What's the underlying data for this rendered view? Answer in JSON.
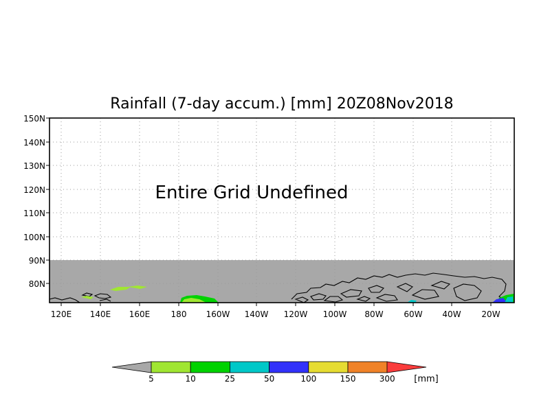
{
  "title": "Rainfall (7-day accum.) [mm] 20Z08Nov2018",
  "message": "Entire Grid Undefined",
  "lat_labels": [
    "150N",
    "140N",
    "130N",
    "120N",
    "110N",
    "100N",
    "90N",
    "80N"
  ],
  "lon_labels": [
    "120E",
    "140E",
    "160E",
    "180",
    "160W",
    "140W",
    "120W",
    "100W",
    "80W",
    "60W",
    "40W",
    "20W"
  ],
  "legend": {
    "unit": "[mm]",
    "ticks": [
      "5",
      "10",
      "25",
      "50",
      "100",
      "150",
      "300"
    ],
    "colors": {
      "below": "#a8a8a8",
      "bins": [
        "#a0e632",
        "#00d200",
        "#00c8c8",
        "#3232fa",
        "#e6dc32",
        "#f08228"
      ],
      "above": "#fa3c3c"
    }
  },
  "map": {
    "undefined_fill": "#a8a8a8",
    "grid_color": "#999999"
  }
}
